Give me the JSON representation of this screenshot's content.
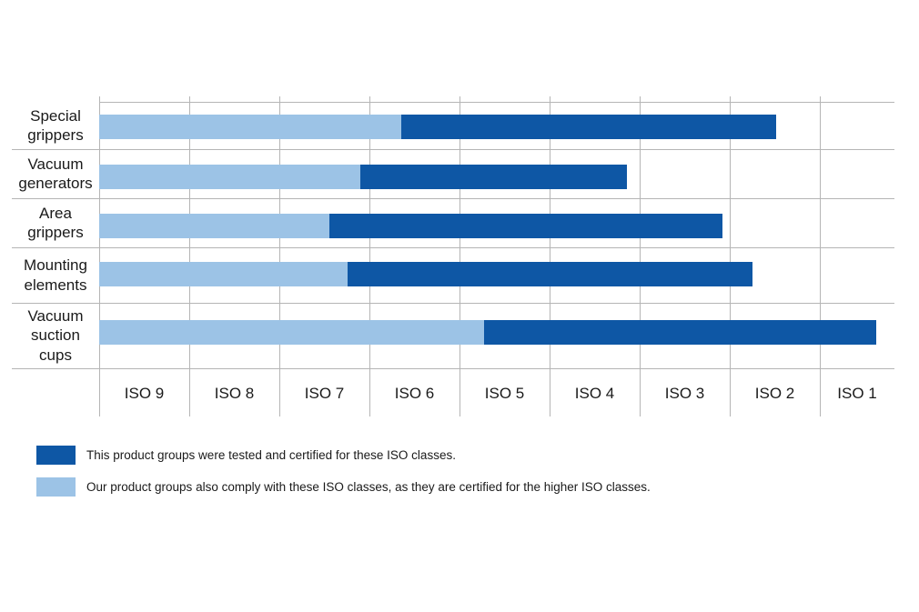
{
  "chart_data": {
    "type": "bar",
    "subtype": "horizontal-stacked-range",
    "title": "",
    "categories": [
      {
        "name": "Special grippers",
        "lines": [
          "Special",
          "grippers"
        ]
      },
      {
        "name": "Vacuum generators",
        "lines": [
          "Vacuum",
          "generators"
        ]
      },
      {
        "name": "Area grippers",
        "lines": [
          "Area",
          "grippers"
        ]
      },
      {
        "name": "Mounting elements",
        "lines": [
          "Mounting",
          "elements"
        ]
      },
      {
        "name": "Vacuum suction cups",
        "lines": [
          "Vacuum",
          "suction",
          "cups"
        ]
      }
    ],
    "x_axis": {
      "labels": [
        "ISO 9",
        "ISO 8",
        "ISO 7",
        "ISO 6",
        "ISO 5",
        "ISO 4",
        "ISO 3",
        "ISO 2",
        "ISO 1"
      ],
      "units_note": "1 unit = one ISO class column, measured rightward from the left edge of the ISO 9 column"
    },
    "series": [
      {
        "name": "Our product groups also comply with these ISO classes, as they are certified for the higher ISO classes.",
        "color": "#9CC3E6",
        "start_units": [
          0,
          0,
          0,
          0,
          0
        ],
        "end_units": [
          3.35,
          2.9,
          2.56,
          2.76,
          4.27
        ]
      },
      {
        "name": "This product groups were tested and certified for these ISO classes.",
        "color": "#0E57A5",
        "end_units": [
          7.52,
          5.86,
          6.92,
          7.25,
          8.63
        ],
        "certified_range_approx": [
          "ISO 6 - ISO 2",
          "ISO 7 - ISO 4",
          "ISO 7 - ISO 3",
          "ISO 7 - ISO 2",
          "ISO 5 - ISO 1"
        ]
      }
    ],
    "grid": true,
    "legend_position": "bottom-left"
  },
  "legend": {
    "items": [
      {
        "swatch_color": "#0E57A5",
        "label": "This product groups were tested and certified for these ISO classes."
      },
      {
        "swatch_color": "#9CC3E6",
        "label": "Our product groups also comply with these ISO classes, as they are certified for the higher ISO classes."
      }
    ]
  },
  "colors": {
    "dark_blue": "#0E57A5",
    "light_blue": "#9CC3E6",
    "grid_line": "#B5B5B5",
    "text": "#1A1A1A",
    "background": "#FFFFFF"
  }
}
